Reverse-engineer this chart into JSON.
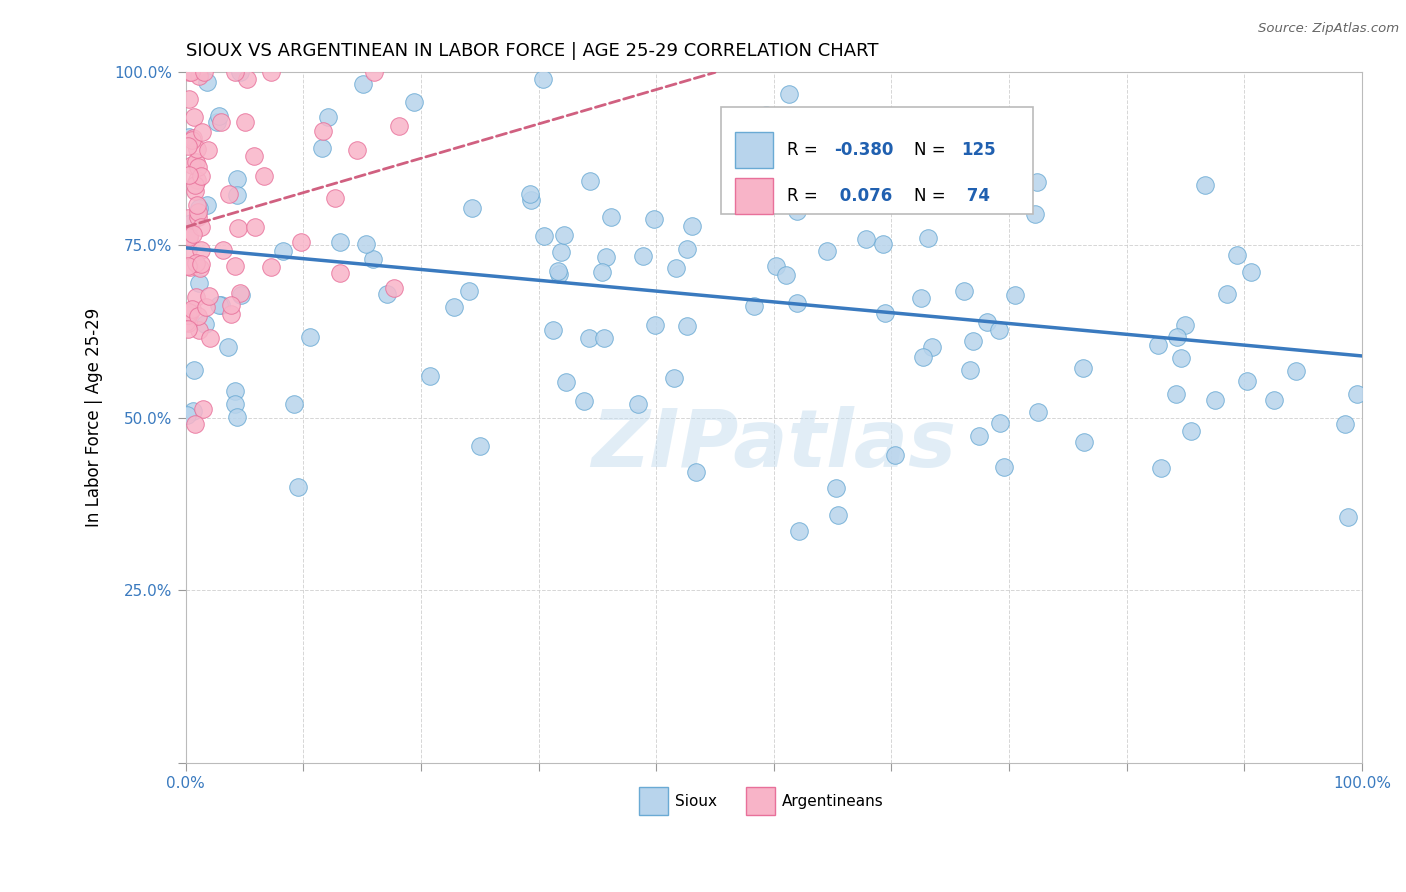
{
  "title": "SIOUX VS ARGENTINEAN IN LABOR FORCE | AGE 25-29 CORRELATION CHART",
  "source_text": "Source: ZipAtlas.com",
  "ylabel": "In Labor Force | Age 25-29",
  "xlim": [
    0,
    1
  ],
  "ylim": [
    0,
    1
  ],
  "blue_R": -0.38,
  "blue_N": 125,
  "pink_R": 0.076,
  "pink_N": 74,
  "blue_color": "#b8d4ec",
  "blue_edge": "#6aaad4",
  "pink_color": "#f8b4c8",
  "pink_edge": "#e8709a",
  "blue_line_color": "#3a7abf",
  "pink_line_color": "#d06080",
  "legend_R_color": "#2060b0",
  "watermark": "ZIPatlas",
  "seed_blue": 123,
  "seed_pink": 456
}
